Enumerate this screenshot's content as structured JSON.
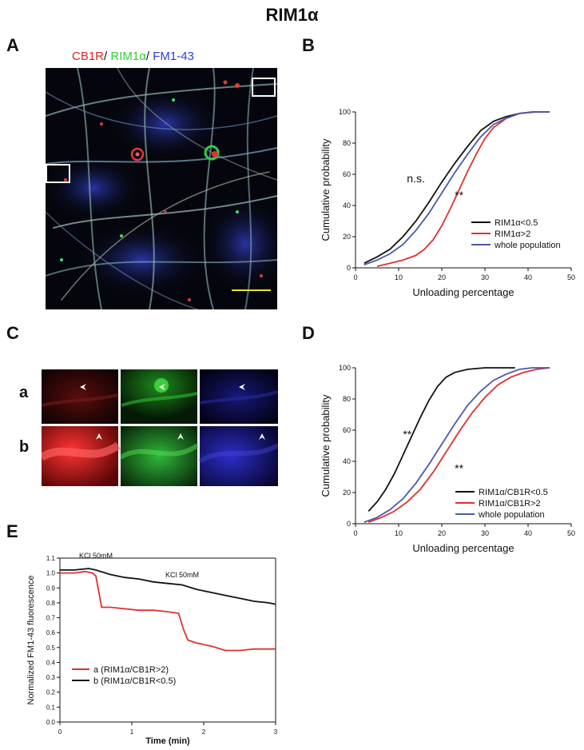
{
  "figure": {
    "title": "RIM1α"
  },
  "panels": {
    "a": "A",
    "b": "B",
    "c": "C",
    "d": "D",
    "e": "E"
  },
  "panel_a": {
    "caption_cb1r": "CB1R",
    "caption_rim": "RIM1α",
    "caption_fm": "FM1-43",
    "separator": "/ "
  },
  "panel_c": {
    "row_a": "a",
    "row_b": "b"
  },
  "colors": {
    "black": "#111111",
    "red": "#e03030",
    "blue": "#4a5aa8"
  },
  "chart_data": [
    {
      "id": "B",
      "type": "line",
      "xlabel": "Unloading percentage",
      "ylabel": "Cumulative probability",
      "xlim": [
        0,
        50
      ],
      "ylim": [
        0,
        100
      ],
      "xticks": [
        "0",
        "10",
        "20",
        "30",
        "40",
        "50"
      ],
      "yticks": [
        "0",
        "20",
        "40",
        "60",
        "80",
        "100"
      ],
      "legend_position": "bottom-right",
      "annotations": [
        {
          "text": "n.s.",
          "x": 14,
          "y": 55
        },
        {
          "text": "**",
          "x": 24,
          "y": 44
        }
      ],
      "series": [
        {
          "name": "RIM1α<0.5",
          "color": "#111111",
          "points": [
            [
              2,
              3
            ],
            [
              5,
              7
            ],
            [
              8,
              12
            ],
            [
              11,
              20
            ],
            [
              14,
              30
            ],
            [
              17,
              42
            ],
            [
              20,
              55
            ],
            [
              23,
              67
            ],
            [
              26,
              78
            ],
            [
              29,
              88
            ],
            [
              32,
              94
            ],
            [
              35,
              97
            ],
            [
              38,
              99
            ],
            [
              41,
              100
            ],
            [
              45,
              100
            ]
          ]
        },
        {
          "name": "RIM1α>2",
          "color": "#e03030",
          "points": [
            [
              5,
              1
            ],
            [
              8,
              3
            ],
            [
              11,
              5
            ],
            [
              14,
              8
            ],
            [
              16,
              12
            ],
            [
              18,
              18
            ],
            [
              20,
              27
            ],
            [
              22,
              38
            ],
            [
              24,
              50
            ],
            [
              26,
              62
            ],
            [
              28,
              73
            ],
            [
              30,
              83
            ],
            [
              32,
              90
            ],
            [
              35,
              96
            ],
            [
              38,
              99
            ],
            [
              42,
              100
            ],
            [
              45,
              100
            ]
          ]
        },
        {
          "name": "whole population",
          "color": "#4a5aa8",
          "points": [
            [
              2,
              2
            ],
            [
              5,
              5
            ],
            [
              8,
              9
            ],
            [
              11,
              15
            ],
            [
              14,
              24
            ],
            [
              17,
              35
            ],
            [
              20,
              48
            ],
            [
              23,
              61
            ],
            [
              26,
              73
            ],
            [
              29,
              84
            ],
            [
              32,
              92
            ],
            [
              35,
              96
            ],
            [
              38,
              99
            ],
            [
              41,
              100
            ],
            [
              45,
              100
            ]
          ]
        }
      ]
    },
    {
      "id": "D",
      "type": "line",
      "xlabel": "Unloading percentage",
      "ylabel": "Cumulative probability",
      "xlim": [
        0,
        50
      ],
      "ylim": [
        0,
        100
      ],
      "xticks": [
        "0",
        "10",
        "20",
        "30",
        "40",
        "50"
      ],
      "yticks": [
        "0",
        "20",
        "40",
        "60",
        "80",
        "100"
      ],
      "legend_position": "bottom-right",
      "annotations": [
        {
          "text": "**",
          "x": 12,
          "y": 55
        },
        {
          "text": "**",
          "x": 24,
          "y": 33
        }
      ],
      "series": [
        {
          "name": "RIM1α/CB1R<0.5",
          "color": "#111111",
          "points": [
            [
              3,
              8
            ],
            [
              5,
              14
            ],
            [
              7,
              22
            ],
            [
              9,
              32
            ],
            [
              11,
              44
            ],
            [
              13,
              56
            ],
            [
              15,
              68
            ],
            [
              17,
              79
            ],
            [
              19,
              88
            ],
            [
              21,
              94
            ],
            [
              23,
              97
            ],
            [
              26,
              99
            ],
            [
              30,
              100
            ],
            [
              37,
              100
            ]
          ]
        },
        {
          "name": "RIM1α/CB1R>2",
          "color": "#e03030",
          "points": [
            [
              3,
              1
            ],
            [
              6,
              4
            ],
            [
              9,
              8
            ],
            [
              12,
              14
            ],
            [
              15,
              22
            ],
            [
              18,
              33
            ],
            [
              21,
              46
            ],
            [
              24,
              59
            ],
            [
              27,
              71
            ],
            [
              30,
              81
            ],
            [
              33,
              89
            ],
            [
              36,
              94
            ],
            [
              39,
              97
            ],
            [
              42,
              99
            ],
            [
              45,
              100
            ]
          ]
        },
        {
          "name": "whole population",
          "color": "#4a5aa8",
          "points": [
            [
              2,
              1
            ],
            [
              5,
              4
            ],
            [
              8,
              9
            ],
            [
              11,
              16
            ],
            [
              14,
              26
            ],
            [
              17,
              38
            ],
            [
              20,
              51
            ],
            [
              23,
              64
            ],
            [
              26,
              76
            ],
            [
              29,
              85
            ],
            [
              32,
              92
            ],
            [
              35,
              96
            ],
            [
              38,
              99
            ],
            [
              41,
              100
            ],
            [
              45,
              100
            ]
          ]
        }
      ]
    },
    {
      "id": "E",
      "type": "line",
      "xlabel": "Time (min)",
      "ylabel": "Normalized FM1-43 fluorescence",
      "xlim": [
        0,
        3
      ],
      "ylim": [
        0.0,
        1.1
      ],
      "xticks": [
        "0",
        "1",
        "2",
        "3"
      ],
      "yticks": [
        "0.0",
        "0.1",
        "0.2",
        "0.3",
        "0.4",
        "0.5",
        "0.6",
        "0.7",
        "0.8",
        "0.9",
        "1.0",
        "1.1"
      ],
      "legend_position": "bottom-left",
      "annotations": [
        {
          "text": "KCl 50mM",
          "x": 0.5,
          "y": 1.1
        },
        {
          "text": "KCl 50mM",
          "x": 1.7,
          "y": 0.97
        }
      ],
      "series": [
        {
          "name": "a  (RIM1α/CB1R>2)",
          "color": "#e03030",
          "points": [
            [
              0,
              1.0
            ],
            [
              0.2,
              1.0
            ],
            [
              0.35,
              1.01
            ],
            [
              0.45,
              1.0
            ],
            [
              0.5,
              0.98
            ],
            [
              0.55,
              0.85
            ],
            [
              0.58,
              0.77
            ],
            [
              0.7,
              0.77
            ],
            [
              0.9,
              0.76
            ],
            [
              1.1,
              0.75
            ],
            [
              1.3,
              0.75
            ],
            [
              1.5,
              0.74
            ],
            [
              1.65,
              0.73
            ],
            [
              1.72,
              0.62
            ],
            [
              1.78,
              0.55
            ],
            [
              1.9,
              0.53
            ],
            [
              2.1,
              0.51
            ],
            [
              2.3,
              0.48
            ],
            [
              2.5,
              0.48
            ],
            [
              2.7,
              0.49
            ],
            [
              2.9,
              0.49
            ],
            [
              3.0,
              0.49
            ]
          ]
        },
        {
          "name": "b  (RIM1α/CB1R<0.5)",
          "color": "#111111",
          "points": [
            [
              0,
              1.02
            ],
            [
              0.2,
              1.02
            ],
            [
              0.4,
              1.03
            ],
            [
              0.5,
              1.02
            ],
            [
              0.7,
              0.99
            ],
            [
              0.9,
              0.97
            ],
            [
              1.1,
              0.96
            ],
            [
              1.3,
              0.94
            ],
            [
              1.5,
              0.93
            ],
            [
              1.7,
              0.92
            ],
            [
              1.9,
              0.89
            ],
            [
              2.1,
              0.87
            ],
            [
              2.3,
              0.85
            ],
            [
              2.5,
              0.83
            ],
            [
              2.7,
              0.81
            ],
            [
              2.9,
              0.8
            ],
            [
              3.0,
              0.79
            ]
          ]
        }
      ]
    }
  ]
}
